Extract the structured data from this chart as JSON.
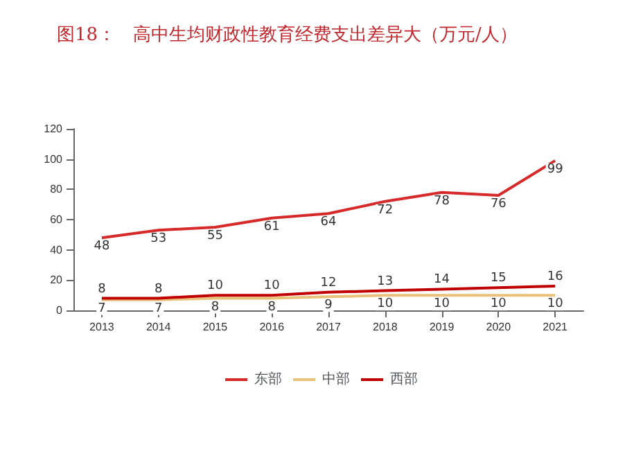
{
  "chart_data": {
    "type": "line",
    "title": "图18：   高中生均财政性教育经费支出差异大（万元/人）",
    "categories": [
      "2013",
      "2014",
      "2015",
      "2016",
      "2017",
      "2018",
      "2019",
      "2020",
      "2021"
    ],
    "series": [
      {
        "name": "东部",
        "color": "#d62a2a",
        "values": [
          48,
          53,
          55,
          61,
          64,
          72,
          78,
          76,
          99
        ]
      },
      {
        "name": "中部",
        "color": "#e8c27a",
        "values": [
          7,
          7,
          8,
          8,
          9,
          10,
          10,
          10,
          10
        ]
      },
      {
        "name": "西部",
        "color": "#c00000",
        "values": [
          8,
          8,
          10,
          10,
          12,
          13,
          14,
          15,
          16
        ]
      }
    ],
    "ylim": [
      0,
      120
    ],
    "yticks": [
      0,
      20,
      40,
      60,
      80,
      100,
      120
    ],
    "grid": false,
    "legend": "bottom",
    "data_labels": true,
    "marker": "none"
  }
}
